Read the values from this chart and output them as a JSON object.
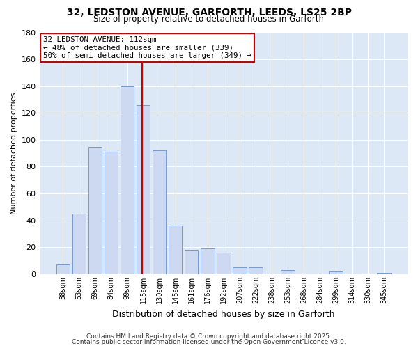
{
  "title1": "32, LEDSTON AVENUE, GARFORTH, LEEDS, LS25 2BP",
  "title2": "Size of property relative to detached houses in Garforth",
  "xlabel": "Distribution of detached houses by size in Garforth",
  "ylabel": "Number of detached properties",
  "bar_labels": [
    "38sqm",
    "53sqm",
    "69sqm",
    "84sqm",
    "99sqm",
    "115sqm",
    "130sqm",
    "145sqm",
    "161sqm",
    "176sqm",
    "192sqm",
    "207sqm",
    "222sqm",
    "238sqm",
    "253sqm",
    "268sqm",
    "284sqm",
    "299sqm",
    "314sqm",
    "330sqm",
    "345sqm"
  ],
  "bar_values": [
    7,
    45,
    95,
    91,
    140,
    126,
    92,
    36,
    18,
    19,
    16,
    5,
    5,
    0,
    3,
    0,
    0,
    2,
    0,
    0,
    1
  ],
  "bar_color": "#ccd9f0",
  "bar_edge_color": "#7799cc",
  "vline_color": "#cc0000",
  "annotation_text": "32 LEDSTON AVENUE: 112sqm\n← 48% of detached houses are smaller (339)\n50% of semi-detached houses are larger (349) →",
  "annotation_box_color": "#ffffff",
  "annotation_box_edge_color": "#cc0000",
  "ylim": [
    0,
    180
  ],
  "yticks": [
    0,
    20,
    40,
    60,
    80,
    100,
    120,
    140,
    160,
    180
  ],
  "plot_bg_color": "#dce8f5",
  "fig_bg_color": "#ffffff",
  "grid_color": "#ffffff",
  "footer1": "Contains HM Land Registry data © Crown copyright and database right 2025.",
  "footer2": "Contains public sector information licensed under the Open Government Licence v3.0."
}
